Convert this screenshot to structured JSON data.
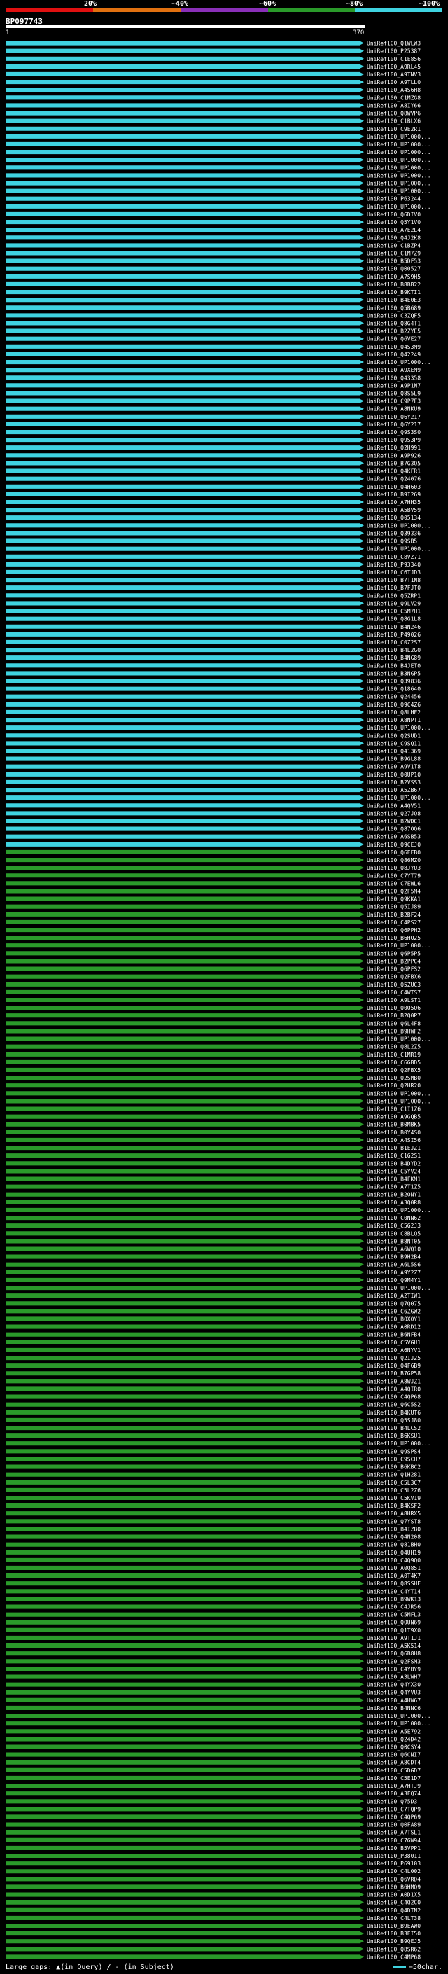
{
  "scale": {
    "labels": [
      "20%",
      "~40%",
      "~60%",
      "~80%",
      "~100%"
    ],
    "colors": [
      "#e01010",
      "#e07010",
      "#8a2fb8",
      "#2a9a2a",
      "#3fd3e0"
    ]
  },
  "query": {
    "id": "BP097743",
    "start": "1",
    "end": "370"
  },
  "hits": [
    "UniRef100_Q1WLW3",
    "UniRef100_P25387",
    "UniRef100_C1E856",
    "UniRef100_A9RL45",
    "UniRef100_A9TNV3",
    "UniRef100_A9TLL0",
    "UniRef100_A4S6H8",
    "UniRef100_C1MZG8",
    "UniRef100_A8IY66",
    "UniRef100_Q8WVP6",
    "UniRef100_C1BLX6",
    "UniRef100_C9E2R1",
    "UniRef100_UP1000...",
    "UniRef100_UP1000...",
    "UniRef100_UP1000...",
    "UniRef100_UP1000...",
    "UniRef100_UP1000...",
    "UniRef100_UP1000...",
    "UniRef100_UP1000...",
    "UniRef100_UP1000...",
    "UniRef100_P63244",
    "UniRef100_UP1000...",
    "UniRef100_Q6DIV0",
    "UniRef100_Q5Y1V0",
    "UniRef100_A7E2L4",
    "UniRef100_Q4J2K8",
    "UniRef100_C1BZP4",
    "UniRef100_C1M7Z9",
    "UniRef100_B5DF53",
    "UniRef100_Q00527",
    "UniRef100_A7S9H5",
    "UniRef100_B8BB22",
    "UniRef100_B9KTI1",
    "UniRef100_B4E0E3",
    "UniRef100_Q5B689",
    "UniRef100_C3ZQF5",
    "UniRef100_Q8G4T1",
    "UniRef100_B2ZYE5",
    "UniRef100_Q6VE27",
    "UniRef100_Q4S3M9",
    "UniRef100_Q42249",
    "UniRef100_UP1000...",
    "UniRef100_A9XEM9",
    "UniRef100_Q43358",
    "UniRef100_A9P1N7",
    "UniRef100_Q8S5L9",
    "UniRef100_C9P7F3",
    "UniRef100_A8NKU9",
    "UniRef100_Q6Y217",
    "UniRef100_Q6Y217",
    "UniRef100_Q9S3S0",
    "UniRef100_Q9S3P9",
    "UniRef100_Q2H991",
    "UniRef100_A9P926",
    "UniRef100_B7G3Q5",
    "UniRef100_Q4KFR1",
    "UniRef100_Q24076",
    "UniRef100_Q4H603",
    "UniRef100_B9I269",
    "UniRef100_A7HH35",
    "UniRef100_A5BV59",
    "UniRef100_Q05134",
    "UniRef100_UP1000...",
    "UniRef100_Q39336",
    "UniRef100_Q9SB5",
    "UniRef100_UP1000...",
    "UniRef100_C8VZ71",
    "UniRef100_P93340",
    "UniRef100_C6TJD3",
    "UniRef100_B7T1N8",
    "UniRef100_B7FJT0",
    "UniRef100_Q5ZRP1",
    "UniRef100_Q9LV29",
    "UniRef100_C5M7H1",
    "UniRef100_Q8G1L8",
    "UniRef100_B4N246",
    "UniRef100_P49026",
    "UniRef100_C0Z2S7",
    "UniRef100_B4L2G0",
    "UniRef100_B4NG89",
    "UniRef100_B4JET0",
    "UniRef100_B3NGP5",
    "UniRef100_Q39836",
    "UniRef100_Q18640",
    "UniRef100_Q24456",
    "UniRef100_Q9C4Z6",
    "UniRef100_Q8LHF2",
    "UniRef100_A8NPT1",
    "UniRef100_UP1000...",
    "UniRef100_Q2SUD1",
    "UniRef100_C9SQ11",
    "UniRef100_Q41369",
    "UniRef100_B9GL88",
    "UniRef100_A9V1T8",
    "UniRef100_Q0UP10",
    "UniRef100_B2VSS3",
    "UniRef100_A5ZB67",
    "UniRef100_UP1000...",
    "UniRef100_A4QV51",
    "UniRef100_Q27JQ8",
    "UniRef100_B2WDC1",
    "UniRef100_Q87OQ6",
    "UniRef100_A6SB53",
    "UniRef100_Q9CEJ0",
    "UniRef100_Q6EEB0",
    "UniRef100_Q86MZ0",
    "UniRef100_Q8JYU3",
    "UniRef100_C7YT79",
    "UniRef100_C7EWL6",
    "UniRef100_Q2F5M4",
    "UniRef100_Q9KKA1",
    "UniRef100_Q5IJ89",
    "UniRef100_B2BF24",
    "UniRef100_C4PS27",
    "UniRef100_Q6PPH2",
    "UniRef100_B6HQ25",
    "UniRef100_UP1000...",
    "UniRef100_Q6P5P5",
    "UniRef100_B2PPC4",
    "UniRef100_Q6PFS2",
    "UniRef100_Q2FBX6",
    "UniRef100_Q5ZUC3",
    "UniRef100_C4WTS7",
    "UniRef100_A9LST1",
    "UniRef100_Q0Q5Q6",
    "UniRef100_B2Q0P7",
    "UniRef100_Q6L4F8",
    "UniRef100_B9HWF2",
    "UniRef100_UP1000...",
    "UniRef100_Q8L2Z5",
    "UniRef100_C1MR19",
    "UniRef100_C6GBD5",
    "UniRef100_Q2FBX5",
    "UniRef100_Q2SMB0",
    "UniRef100_Q2HR20",
    "UniRef100_UP1000...",
    "UniRef100_UP1000...",
    "UniRef100_C1I1Z6",
    "UniRef100_A9GQB5",
    "UniRef100_B0MBK5",
    "UniRef100_B0Y4S0",
    "UniRef100_A4SI56",
    "UniRef100_B1EJZ1",
    "UniRef100_C1G2S1",
    "UniRef100_B4DYD2",
    "UniRef100_C5YV24",
    "UniRef100_B4FKM1",
    "UniRef100_A7T1Z5",
    "UniRef100_B2ONY1",
    "UniRef100_A3Q0R8",
    "UniRef100_UP1000...",
    "UniRef100_C0NN62",
    "UniRef100_C5G2J3",
    "UniRef100_C8BLQ5",
    "UniRef100_B8NT05",
    "UniRef100_A6WQ10",
    "UniRef100_B9H2B4",
    "UniRef100_A6L5S6",
    "UniRef100_A9Y2Z7",
    "UniRef100_Q9M4Y1",
    "UniRef100_UP1000...",
    "UniRef100_A2TIW1",
    "UniRef100_Q7Q075",
    "UniRef100_C6ZGW2",
    "UniRef100_B0X0Y1",
    "UniRef100_A0RD12",
    "UniRef100_B6NFB4",
    "UniRef100_C5VGU1",
    "UniRef100_A6NYV1",
    "UniRef100_Q2IJ25",
    "UniRef100_Q4F6B9",
    "UniRef100_B7GP58",
    "UniRef100_A8WJZ1",
    "UniRef100_A4QIR0",
    "UniRef100_C4QP68",
    "UniRef100_Q6C5S2",
    "UniRef100_B4KUT6",
    "UniRef100_Q5SJ80",
    "UniRef100_B4LCS2",
    "UniRef100_B6KSU1",
    "UniRef100_UP1000...",
    "UniRef100_Q9SPS4",
    "UniRef100_C9SCH7",
    "UniRef100_B6KBC2",
    "UniRef100_Q1H281",
    "UniRef100_C5L3C7",
    "UniRef100_C5L2Z6",
    "UniRef100_C5KV19",
    "UniRef100_B4KSF2",
    "UniRef100_A8HRX5",
    "UniRef100_Q7YST8",
    "UniRef100_B4IZB0",
    "UniRef100_Q4N208",
    "UniRef100_Q81BH0",
    "UniRef100_Q4UH19",
    "UniRef100_C4Q9Q0",
    "UniRef100_A0Q851",
    "UniRef100_A0T4K7",
    "UniRef100_Q8SSHE",
    "UniRef100_C4YT14",
    "UniRef100_B9WK13",
    "UniRef100_C4JR56",
    "UniRef100_C5MFL3",
    "UniRef100_Q0UN69",
    "UniRef100_Q1T9X0",
    "UniRef100_A9T1J1",
    "UniRef100_A5K514",
    "UniRef100_Q6B8H8",
    "UniRef100_Q2FSM3",
    "UniRef100_C4YBY9",
    "UniRef100_A3LWH7",
    "UniRef100_Q4YX30",
    "UniRef100_Q4YVU3",
    "UniRef100_A4HW67",
    "UniRef100_B4NNC6",
    "UniRef100_UP1000...",
    "UniRef100_UP1000...",
    "UniRef100_A5E792",
    "UniRef100_Q24D42",
    "UniRef100_Q0CSY4",
    "UniRef100_Q6CNI7",
    "UniRef100_A8CDT4",
    "UniRef100_C5DGD7",
    "UniRef100_C5E1D7",
    "UniRef100_A7HTJ9",
    "UniRef100_A3FQ74",
    "UniRef100_Q75D3",
    "UniRef100_C7TQP9",
    "UniRef100_C4QP69",
    "UniRef100_Q0FA89",
    "UniRef100_A7TSL1",
    "UniRef100_C7GW94",
    "UniRef100_B5VPP1",
    "UniRef100_P38011",
    "UniRef100_P69103",
    "UniRef100_C4L002",
    "UniRef100_Q6VRD4",
    "UniRef100_B6HMQ9",
    "UniRef100_A0D1X5",
    "UniRef100_C4Q2C0",
    "UniRef100_Q4DTN2",
    "UniRef100_C4LT38",
    "UniRef100_B9EAW0",
    "UniRef100_B3EI50",
    "UniRef100_B9QEJ5",
    "UniRef100_Q8SR62",
    "UniRef100_C4MP68"
  ],
  "footer": {
    "gaps_legend": "Large gaps: ▲(in Query) / - (in Subject)",
    "scale_legend": "=50char."
  }
}
